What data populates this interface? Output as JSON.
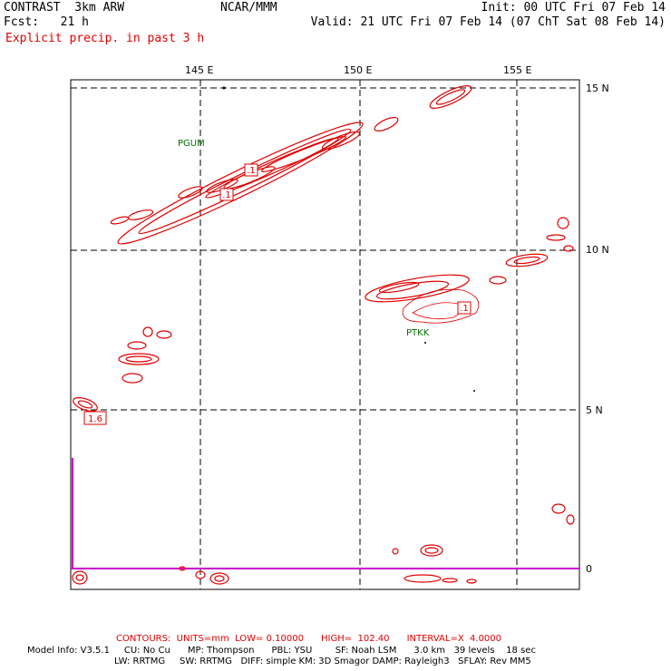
{
  "header": {
    "left_line1": "CONTRAST  3km ARW",
    "left_line2": "Fcst:   21 h",
    "center": "NCAR/MMM",
    "right_line1": "Init: 00 UTC Fri 07 Feb 14",
    "right_line2": "Valid: 21 UTC Fri 07 Feb 14 (07 ChT Sat 08 Feb 14)",
    "field_title": "Explicit precip. in past 3 h"
  },
  "axes": {
    "lon_labels": [
      "145 E",
      "150 E",
      "155 E"
    ],
    "lat_labels": [
      "15 N",
      "10 N",
      "5 N",
      "0"
    ]
  },
  "stations": [
    "PGUM",
    "PTKK"
  ],
  "contour_values": [
    ".1",
    ".1",
    ".1",
    "1.6"
  ],
  "footer": {
    "contours": "CONTOURS:  UNITS=mm  LOW= 0.10000      HIGH=  102.40      INTERVAL=X  4.0000",
    "model_line1": "Model Info: V3.5.1     CU: No Cu      MP: Thompson      PBL: YSU        SF: Noah LSM      3.0 km   39 levels    18 sec",
    "model_line2": "LW: RRTMG     SW: RRTMG   DIFF: simple KM: 3D Smagor DAMP: Rayleigh3   SFLAY: Rev MM5"
  },
  "colors": {
    "contour": "#e00000",
    "station": "#007000",
    "equator": "#cc00cc",
    "text": "#000000"
  }
}
